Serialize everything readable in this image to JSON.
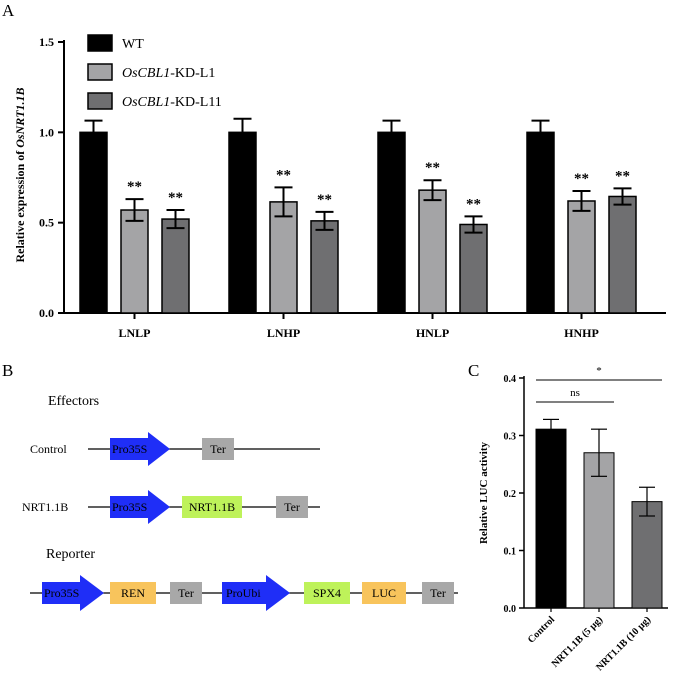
{
  "panels": {
    "a": "A",
    "b": "B",
    "c": "C"
  },
  "chart_data": [
    {
      "type": "bar",
      "panel": "A",
      "ylabel_prefix": "Relative expression of ",
      "ylabel_gene": "OsNRT1.1B",
      "ylim": [
        0,
        1.5
      ],
      "yticks": [
        "0.0",
        "0.5",
        "1.0",
        "1.5"
      ],
      "ytick_values": [
        0,
        0.5,
        1.0,
        1.5
      ],
      "categories": [
        "LNLP",
        "LNHP",
        "HNLP",
        "HNHP"
      ],
      "series": [
        {
          "name": "WT",
          "name_italic": "",
          "name_rest": "WT",
          "color": "#000000",
          "values": [
            1.0,
            1.0,
            1.0,
            1.0
          ],
          "errors": [
            0.065,
            0.075,
            0.065,
            0.065
          ],
          "sig": [
            "",
            "",
            "",
            ""
          ]
        },
        {
          "name": "OsCBL1-KD-L1",
          "name_italic": "OsCBL1",
          "name_rest": "-KD-L1",
          "color": "#a4a4a6",
          "values": [
            0.57,
            0.615,
            0.68,
            0.62
          ],
          "errors": [
            0.06,
            0.08,
            0.055,
            0.055
          ],
          "sig": [
            "**",
            "**",
            "**",
            "**"
          ]
        },
        {
          "name": "OsCBL1-KD-L11",
          "name_italic": "OsCBL1",
          "name_rest": "-KD-L11",
          "color": "#6f6f71",
          "values": [
            0.52,
            0.51,
            0.49,
            0.645
          ],
          "errors": [
            0.05,
            0.05,
            0.045,
            0.045
          ],
          "sig": [
            "**",
            "**",
            "**",
            "**"
          ]
        }
      ],
      "legend_position": "top-left"
    },
    {
      "type": "bar",
      "panel": "C",
      "ylabel": "Relative LUC activity",
      "ylim": [
        0,
        0.4
      ],
      "yticks": [
        "0.0",
        "0.1",
        "0.2",
        "0.3",
        "0.4"
      ],
      "ytick_values": [
        0,
        0.1,
        0.2,
        0.3,
        0.4
      ],
      "categories": [
        "Control",
        "NRT1.1B (5 μg)",
        "NRT1.1B (10 μg)"
      ],
      "values": [
        0.311,
        0.27,
        0.185
      ],
      "errors": [
        0.017,
        0.041,
        0.025
      ],
      "colors": [
        "#000000",
        "#a4a4a6",
        "#6f6f71"
      ],
      "comparisons": [
        {
          "from": 0,
          "to": 1,
          "label": "ns"
        },
        {
          "from": 0,
          "to": 2,
          "label": "*"
        }
      ]
    }
  ],
  "constructs": {
    "effectors_label": "Effectors",
    "reporter_label": "Reporter",
    "rows": [
      {
        "label": "Control",
        "elements": [
          {
            "text": "Pro35S",
            "kind": "promoter",
            "color": "#1f2ef7"
          },
          {
            "text": "Ter",
            "kind": "box",
            "color": "#a8a8a8"
          }
        ]
      },
      {
        "label": "NRT1.1B",
        "elements": [
          {
            "text": "Pro35S",
            "kind": "promoter",
            "color": "#1f2ef7"
          },
          {
            "text": "NRT1.1B",
            "kind": "box",
            "color": "#bef25a"
          },
          {
            "text": "Ter",
            "kind": "box",
            "color": "#a8a8a8"
          }
        ]
      },
      {
        "label": "",
        "elements": [
          {
            "text": "Pro35S",
            "kind": "promoter",
            "color": "#1f2ef7"
          },
          {
            "text": "REN",
            "kind": "box",
            "color": "#f8c45c"
          },
          {
            "text": "Ter",
            "kind": "box",
            "color": "#a8a8a8"
          },
          {
            "text": "ProUbi",
            "kind": "promoter",
            "color": "#1f2ef7"
          },
          {
            "text": "SPX4",
            "kind": "box",
            "color": "#bef25a"
          },
          {
            "text": "LUC",
            "kind": "box",
            "color": "#f8c45c"
          },
          {
            "text": "Ter",
            "kind": "box",
            "color": "#a8a8a8"
          }
        ]
      }
    ]
  }
}
